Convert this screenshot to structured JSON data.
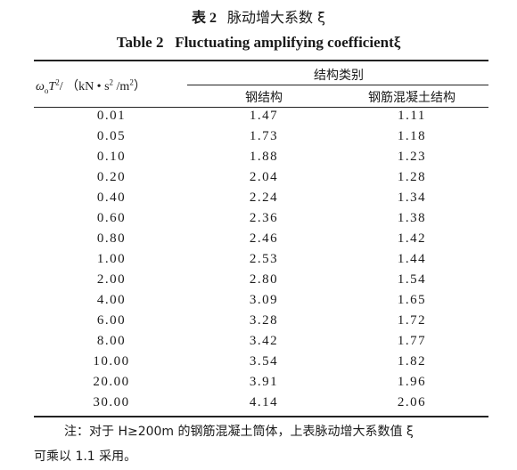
{
  "title_cn": {
    "number": "表 2",
    "text": "脉动增大系数 ξ"
  },
  "title_en": {
    "number": "Table 2",
    "text": "Fluctuating amplifying coefficientξ"
  },
  "table": {
    "header": {
      "col1": [
        "ω",
        "o",
        "T",
        "2",
        "/ （kN • s",
        "2",
        " /m",
        "2",
        "）"
      ],
      "group": "结构类别",
      "col2": "钢结构",
      "col3": "钢筋混凝土结构"
    },
    "rows": [
      [
        "0.01",
        "1.47",
        "1.11"
      ],
      [
        "0.05",
        "1.73",
        "1.18"
      ],
      [
        "0.10",
        "1.88",
        "1.23"
      ],
      [
        "0.20",
        "2.04",
        "1.28"
      ],
      [
        "0.40",
        "2.24",
        "1.34"
      ],
      [
        "0.60",
        "2.36",
        "1.38"
      ],
      [
        "0.80",
        "2.46",
        "1.42"
      ],
      [
        "1.00",
        "2.53",
        "1.44"
      ],
      [
        "2.00",
        "2.80",
        "1.54"
      ],
      [
        "4.00",
        "3.09",
        "1.65"
      ],
      [
        "6.00",
        "3.28",
        "1.72"
      ],
      [
        "8.00",
        "3.42",
        "1.77"
      ],
      [
        "10.00",
        "3.54",
        "1.82"
      ],
      [
        "20.00",
        "3.91",
        "1.96"
      ],
      [
        "30.00",
        "4.14",
        "2.06"
      ]
    ]
  },
  "note": [
    "注：对于 H≥200m 的钢筋混凝土筒体，上表脉动增大系数值 ξ",
    "可乘以 1.1 采用。"
  ]
}
